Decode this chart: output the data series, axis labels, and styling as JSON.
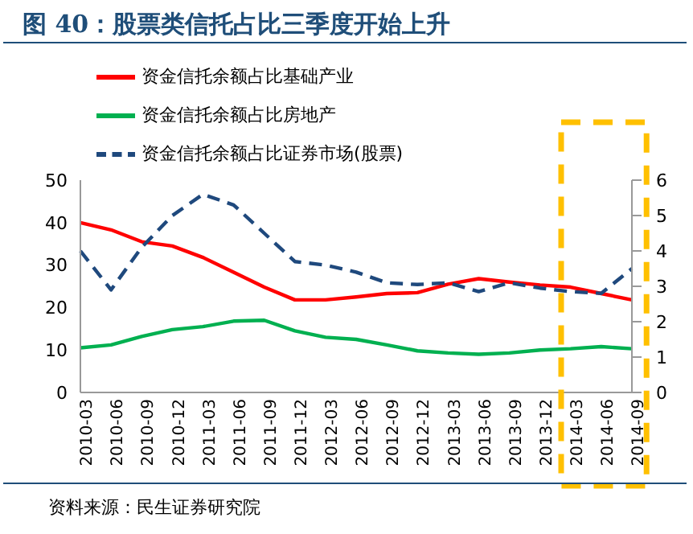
{
  "chart_data": {
    "type": "line",
    "title": "图 40：股票类信托占比三季度开始上升",
    "categories": [
      "2010-03",
      "2010-06",
      "2010-09",
      "2010-12",
      "2011-03",
      "2011-06",
      "2011-09",
      "2011-12",
      "2012-03",
      "2012-06",
      "2012-09",
      "2012-12",
      "2013-03",
      "2013-06",
      "2013-09",
      "2013-12",
      "2014-03",
      "2014-06",
      "2014-09"
    ],
    "series": [
      {
        "name": "资金信托余额占比基础产业",
        "color": "#ff0000",
        "line_style": "solid",
        "values": [
          40,
          38.3,
          35.5,
          34.5,
          31.8,
          28.3,
          24.8,
          21.8,
          21.8,
          22.5,
          23.3,
          23.5,
          25.5,
          26.8,
          26,
          25.3,
          24.8,
          23.3,
          21.8
        ]
      },
      {
        "name": "资金信托余额占比房地产",
        "color": "#00b050",
        "line_style": "solid",
        "values": [
          10.5,
          11.2,
          13.2,
          14.8,
          15.5,
          16.8,
          17,
          14.5,
          13,
          12.5,
          11.2,
          9.8,
          9.3,
          9,
          9.3,
          10,
          10.3,
          10.8,
          10.3
        ]
      },
      {
        "name": "资金信托余额占比证券市场(股票)",
        "color": "#1f497d",
        "line_style": "dashed",
        "axis": "y2",
        "values": [
          4,
          2.9,
          4.1,
          5,
          5.6,
          5.3,
          4.5,
          3.7,
          3.6,
          3.4,
          3.1,
          3.05,
          3.1,
          2.85,
          3.1,
          2.95,
          2.85,
          2.8,
          3.5
        ]
      }
    ],
    "ylim": [
      0,
      50
    ],
    "yticks": [
      0,
      10,
      20,
      30,
      40,
      50
    ],
    "y2lim": [
      0,
      6
    ],
    "y2ticks": [
      0,
      1,
      2,
      3,
      4,
      5,
      6
    ],
    "grid": false,
    "legend": "top",
    "marker": "none",
    "annotations": [
      "资料来源：民生证券研究院"
    ]
  }
}
